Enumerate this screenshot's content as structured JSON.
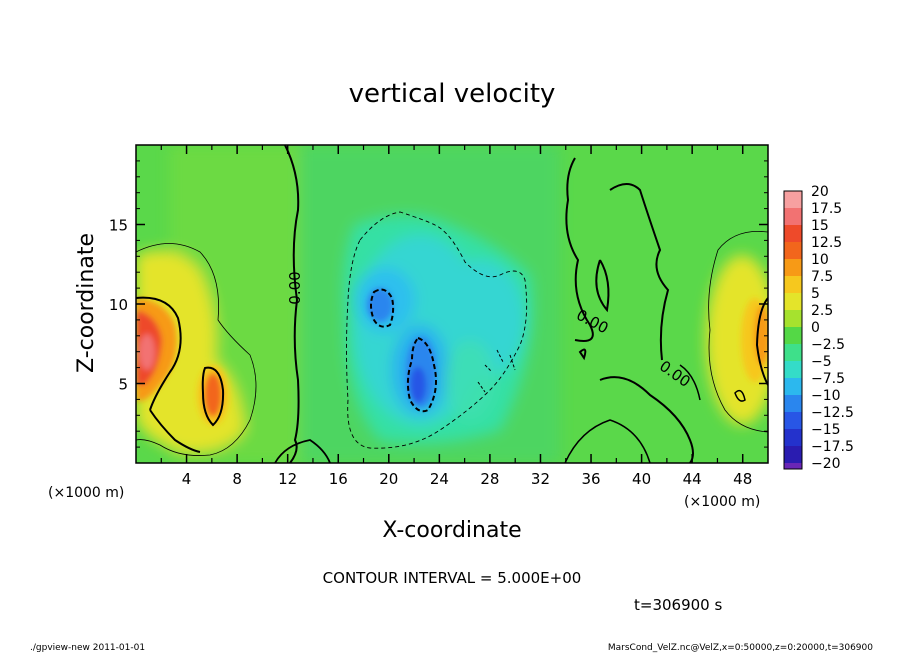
{
  "chart_data": {
    "type": "heatmap",
    "title": "vertical velocity",
    "xlabel": "X-coordinate",
    "ylabel": "Z-coordinate",
    "x_unit": "(×1000 m)",
    "y_unit": "(×1000 m)",
    "xlim": [
      0,
      50
    ],
    "ylim": [
      0,
      20
    ],
    "x_ticks": [
      4,
      8,
      12,
      16,
      20,
      24,
      28,
      32,
      36,
      40,
      44,
      48
    ],
    "y_ticks": [
      5,
      10,
      15
    ],
    "contour_interval_text": "CONTOUR INTERVAL = 5.000E+00",
    "contour_label": "0.00",
    "time_text": "t=306900 s",
    "colorbar": {
      "levels": [
        "20",
        "17.5",
        "15",
        "12.5",
        "10",
        "7.5",
        "5",
        "2.5",
        "0",
        "-2.5",
        "-5",
        "-7.5",
        "-10",
        "-12.5",
        "-15",
        "-17.5",
        "-20"
      ],
      "colors": [
        "#f7a0a0",
        "#f27272",
        "#ee4a2a",
        "#f2661c",
        "#f79a16",
        "#f6c81e",
        "#e4e42a",
        "#a6e22e",
        "#54d846",
        "#3ee08a",
        "#34dcc8",
        "#2cb8ee",
        "#2a86ee",
        "#2856e6",
        "#2432cc",
        "#2a1cb0",
        "#6a26b6"
      ]
    },
    "features": [
      {
        "name": "updraft-left-main",
        "x": 1.0,
        "z": 7.5,
        "w": 17.5
      },
      {
        "name": "updraft-left-lobe",
        "x": 6.0,
        "z": 4.5,
        "w": 12.5
      },
      {
        "name": "downdraft-core-upper",
        "x": 19.2,
        "z": 10.0,
        "w": -10
      },
      {
        "name": "downdraft-core-lower",
        "x": 22.5,
        "z": 5.5,
        "w": -12.5
      },
      {
        "name": "updraft-right",
        "x": 49.5,
        "z": 8.0,
        "w": 10
      }
    ]
  },
  "footer": {
    "left": "./gpview-new 2011-01-01",
    "right": "MarsCond_VelZ.nc@VelZ,x=0:50000,z=0:20000,t=306900"
  }
}
